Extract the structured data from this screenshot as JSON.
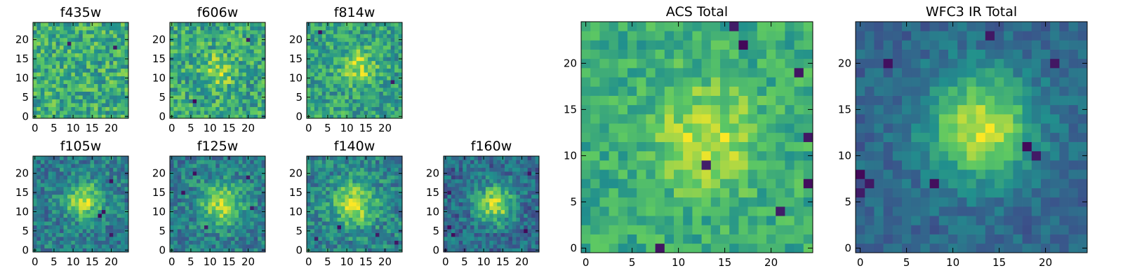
{
  "figure": {
    "colormap": "viridis",
    "colors": [
      "#440154",
      "#3b528b",
      "#21908d",
      "#5dc863",
      "#fde725"
    ]
  },
  "chart_data": [
    {
      "type": "heatmap",
      "title": "f435w",
      "grid": [
        25,
        25
      ],
      "xlim": [
        0,
        24
      ],
      "ylim": [
        0,
        24
      ],
      "xticks": [
        "0",
        "5",
        "10",
        "15",
        "20"
      ],
      "yticks": [
        "0",
        "5",
        "10",
        "15",
        "20"
      ],
      "blob": {
        "x": 12,
        "y": 12,
        "sigma": 5,
        "amplitude": 0.0
      },
      "base": 0.62,
      "noise": 0.22,
      "dark_spots": [
        [
          21,
          18
        ],
        [
          9,
          19
        ]
      ]
    },
    {
      "type": "heatmap",
      "title": "f606w",
      "grid": [
        25,
        25
      ],
      "xlim": [
        0,
        24
      ],
      "ylim": [
        0,
        24
      ],
      "xticks": [
        "0",
        "5",
        "10",
        "15",
        "20"
      ],
      "yticks": [
        "0",
        "5",
        "10",
        "15",
        "20"
      ],
      "blob": {
        "x": 12,
        "y": 12,
        "sigma": 3,
        "amplitude": 0.25
      },
      "base": 0.6,
      "noise": 0.22,
      "dark_spots": [
        [
          20,
          20
        ],
        [
          6,
          4
        ]
      ]
    },
    {
      "type": "heatmap",
      "title": "f814w",
      "grid": [
        25,
        25
      ],
      "xlim": [
        0,
        24
      ],
      "ylim": [
        0,
        24
      ],
      "xticks": [
        "0",
        "5",
        "10",
        "15",
        "20"
      ],
      "yticks": [
        "0",
        "5",
        "10",
        "15",
        "20"
      ],
      "blob": {
        "x": 13,
        "y": 13,
        "sigma": 3,
        "amplitude": 0.3
      },
      "base": 0.58,
      "noise": 0.2,
      "dark_spots": [
        [
          22,
          9
        ],
        [
          3,
          22
        ]
      ]
    },
    {
      "type": "heatmap",
      "title": "f105w",
      "grid": [
        25,
        25
      ],
      "xlim": [
        0,
        24
      ],
      "ylim": [
        0,
        24
      ],
      "xticks": [
        "0",
        "5",
        "10",
        "15",
        "20"
      ],
      "yticks": [
        "0",
        "5",
        "10",
        "15",
        "20"
      ],
      "blob": {
        "x": 13,
        "y": 13,
        "sigma": 3.5,
        "amplitude": 0.45
      },
      "base": 0.42,
      "noise": 0.18,
      "dark_spots": [
        [
          20,
          18
        ],
        [
          18,
          10
        ],
        [
          17,
          9
        ],
        [
          20,
          4
        ]
      ]
    },
    {
      "type": "heatmap",
      "title": "f125w",
      "grid": [
        25,
        25
      ],
      "xlim": [
        0,
        24
      ],
      "ylim": [
        0,
        24
      ],
      "xticks": [
        "0",
        "5",
        "10",
        "15",
        "20"
      ],
      "yticks": [
        "0",
        "5",
        "10",
        "15",
        "20"
      ],
      "blob": {
        "x": 13,
        "y": 12,
        "sigma": 4,
        "amplitude": 0.45
      },
      "base": 0.42,
      "noise": 0.18,
      "dark_spots": [
        [
          3,
          15
        ],
        [
          6,
          20
        ],
        [
          20,
          19
        ],
        [
          9,
          6
        ],
        [
          21,
          11
        ]
      ]
    },
    {
      "type": "heatmap",
      "title": "f140w",
      "grid": [
        25,
        25
      ],
      "xlim": [
        0,
        24
      ],
      "ylim": [
        0,
        24
      ],
      "xticks": [
        "0",
        "5",
        "10",
        "15",
        "20"
      ],
      "yticks": [
        "0",
        "5",
        "10",
        "15",
        "20"
      ],
      "blob": {
        "x": 12,
        "y": 12,
        "sigma": 4,
        "amplitude": 0.45
      },
      "base": 0.45,
      "noise": 0.18,
      "dark_spots": [
        [
          8,
          6
        ],
        [
          2,
          3
        ],
        [
          23,
          2
        ],
        [
          18,
          4
        ]
      ]
    },
    {
      "type": "heatmap",
      "title": "f160w",
      "grid": [
        25,
        25
      ],
      "xlim": [
        0,
        24
      ],
      "ylim": [
        0,
        24
      ],
      "xticks": [
        "0",
        "5",
        "10",
        "15",
        "20"
      ],
      "yticks": [
        "0",
        "5",
        "10",
        "15",
        "20"
      ],
      "blob": {
        "x": 13,
        "y": 12,
        "sigma": 3.5,
        "amplitude": 0.55
      },
      "base": 0.35,
      "noise": 0.17,
      "dark_spots": [
        [
          1,
          6
        ],
        [
          2,
          4
        ],
        [
          22,
          20
        ],
        [
          1,
          15
        ],
        [
          21,
          5
        ]
      ]
    },
    {
      "type": "heatmap",
      "title": "ACS Total",
      "grid": [
        25,
        25
      ],
      "xlim": [
        0,
        24
      ],
      "ylim": [
        0,
        24
      ],
      "xticks": [
        "0",
        "5",
        "10",
        "15",
        "20"
      ],
      "yticks": [
        "0",
        "5",
        "10",
        "15",
        "20"
      ],
      "blob": {
        "x": 13,
        "y": 12,
        "sigma": 4,
        "amplitude": 0.3
      },
      "base": 0.62,
      "noise": 0.14,
      "dark_spots": [
        [
          23,
          19
        ],
        [
          24,
          12
        ],
        [
          13,
          9
        ],
        [
          8,
          0
        ],
        [
          21,
          4
        ],
        [
          24,
          7
        ],
        [
          17,
          22
        ],
        [
          16,
          24
        ]
      ]
    },
    {
      "type": "heatmap",
      "title": "WFC3 IR Total",
      "grid": [
        25,
        25
      ],
      "xlim": [
        0,
        24
      ],
      "ylim": [
        0,
        24
      ],
      "xticks": [
        "0",
        "5",
        "10",
        "15",
        "20"
      ],
      "yticks": [
        "0",
        "5",
        "10",
        "15",
        "20"
      ],
      "blob": {
        "x": 13,
        "y": 13,
        "sigma": 4,
        "amplitude": 0.6
      },
      "base": 0.33,
      "noise": 0.1,
      "dark_spots": [
        [
          0,
          8
        ],
        [
          1,
          7
        ],
        [
          0,
          6
        ],
        [
          3,
          20
        ],
        [
          18,
          11
        ],
        [
          19,
          10
        ],
        [
          21,
          20
        ],
        [
          14,
          23
        ],
        [
          8,
          7
        ]
      ]
    }
  ]
}
